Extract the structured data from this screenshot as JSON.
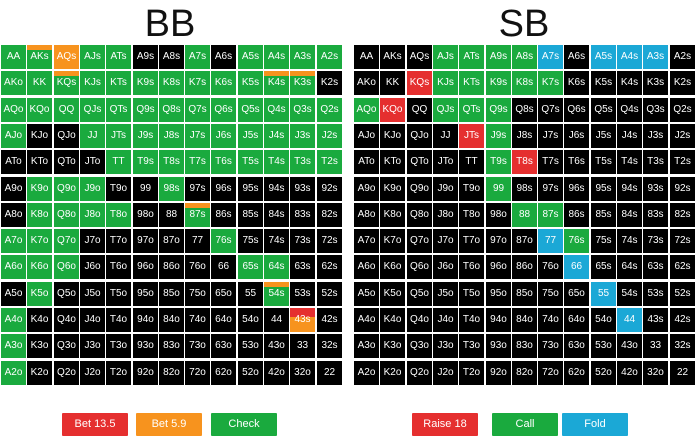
{
  "rows": [
    "A",
    "K",
    "Q",
    "J",
    "T",
    "9",
    "8",
    "7",
    "6",
    "5",
    "4",
    "3",
    "2"
  ],
  "colors": {
    "none": "#000000",
    "green": "#1aaa3e",
    "red": "#e52f2f",
    "orange": "#f7931e",
    "cyan": "#1ba8d6"
  },
  "panels": [
    {
      "title": "BB",
      "strategy": [
        [
          "g",
          "go",
          "o",
          "g",
          "g",
          "n",
          "n",
          "g",
          "n",
          "g",
          "g",
          "g",
          "g"
        ],
        [
          "g",
          "g",
          "go",
          "g",
          "g",
          "g",
          "g",
          "g",
          "g",
          "g",
          "go",
          "go",
          "n"
        ],
        [
          "g",
          "g",
          "g",
          "g",
          "g",
          "g",
          "g",
          "g",
          "g",
          "g",
          "g",
          "g",
          "g"
        ],
        [
          "g",
          "n",
          "n",
          "g",
          "g",
          "g",
          "g",
          "g",
          "g",
          "g",
          "g",
          "g",
          "g"
        ],
        [
          "n",
          "n",
          "n",
          "n",
          "g",
          "g",
          "g",
          "g",
          "g",
          "g",
          "g",
          "g",
          "g"
        ],
        [
          "n",
          "g",
          "g",
          "g",
          "n",
          "n",
          "g",
          "n",
          "n",
          "n",
          "n",
          "n",
          "n"
        ],
        [
          "n",
          "g",
          "g",
          "g",
          "g",
          "n",
          "n",
          "go",
          "n",
          "n",
          "n",
          "n",
          "n"
        ],
        [
          "g",
          "g",
          "g",
          "n",
          "n",
          "n",
          "n",
          "n",
          "g",
          "n",
          "n",
          "n",
          "n"
        ],
        [
          "g",
          "g",
          "g",
          "n",
          "n",
          "n",
          "n",
          "n",
          "n",
          "g",
          "g",
          "n",
          "n"
        ],
        [
          "n",
          "g",
          "n",
          "n",
          "n",
          "n",
          "n",
          "n",
          "n",
          "n",
          "go",
          "n",
          "n"
        ],
        [
          "g",
          "n",
          "n",
          "n",
          "n",
          "n",
          "n",
          "n",
          "n",
          "n",
          "n",
          "ro",
          "n"
        ],
        [
          "g",
          "n",
          "n",
          "n",
          "n",
          "n",
          "n",
          "n",
          "n",
          "n",
          "n",
          "n",
          "n"
        ],
        [
          "g",
          "n",
          "n",
          "n",
          "n",
          "n",
          "n",
          "n",
          "n",
          "n",
          "n",
          "n",
          "n"
        ]
      ],
      "legend": [
        {
          "label": "Bet 13.5",
          "color": "red"
        },
        {
          "label": "Bet 5.9",
          "color": "orange"
        },
        {
          "label": "Check",
          "color": "green"
        }
      ]
    },
    {
      "title": "SB",
      "strategy": [
        [
          "n",
          "n",
          "n",
          "g",
          "g",
          "g",
          "g",
          "c",
          "n",
          "c",
          "c",
          "c",
          "n"
        ],
        [
          "n",
          "n",
          "r",
          "g",
          "g",
          "g",
          "g",
          "g",
          "n",
          "n",
          "n",
          "n",
          "n"
        ],
        [
          "g",
          "r",
          "n",
          "g",
          "g",
          "g",
          "n",
          "n",
          "n",
          "n",
          "n",
          "n",
          "n"
        ],
        [
          "n",
          "n",
          "n",
          "n",
          "r",
          "g",
          "n",
          "n",
          "n",
          "n",
          "n",
          "n",
          "n"
        ],
        [
          "n",
          "n",
          "n",
          "n",
          "n",
          "g",
          "r",
          "n",
          "n",
          "n",
          "n",
          "n",
          "n"
        ],
        [
          "n",
          "n",
          "n",
          "n",
          "n",
          "g",
          "n",
          "n",
          "n",
          "n",
          "n",
          "n",
          "n"
        ],
        [
          "n",
          "n",
          "n",
          "n",
          "n",
          "n",
          "g",
          "g",
          "n",
          "n",
          "n",
          "n",
          "n"
        ],
        [
          "n",
          "n",
          "n",
          "n",
          "n",
          "n",
          "n",
          "c",
          "g",
          "n",
          "n",
          "n",
          "n"
        ],
        [
          "n",
          "n",
          "n",
          "n",
          "n",
          "n",
          "n",
          "n",
          "c",
          "n",
          "n",
          "n",
          "n"
        ],
        [
          "n",
          "n",
          "n",
          "n",
          "n",
          "n",
          "n",
          "n",
          "n",
          "c",
          "n",
          "n",
          "n"
        ],
        [
          "n",
          "n",
          "n",
          "n",
          "n",
          "n",
          "n",
          "n",
          "n",
          "n",
          "c",
          "n",
          "n"
        ],
        [
          "n",
          "n",
          "n",
          "n",
          "n",
          "n",
          "n",
          "n",
          "n",
          "n",
          "n",
          "n",
          "n"
        ],
        [
          "n",
          "n",
          "n",
          "n",
          "n",
          "n",
          "n",
          "n",
          "n",
          "n",
          "n",
          "n",
          "n"
        ]
      ],
      "legend": [
        {
          "label": "Raise 18",
          "color": "red"
        },
        {
          "label": "Call",
          "color": "green"
        },
        {
          "label": "Fold",
          "color": "cyan"
        }
      ]
    }
  ]
}
